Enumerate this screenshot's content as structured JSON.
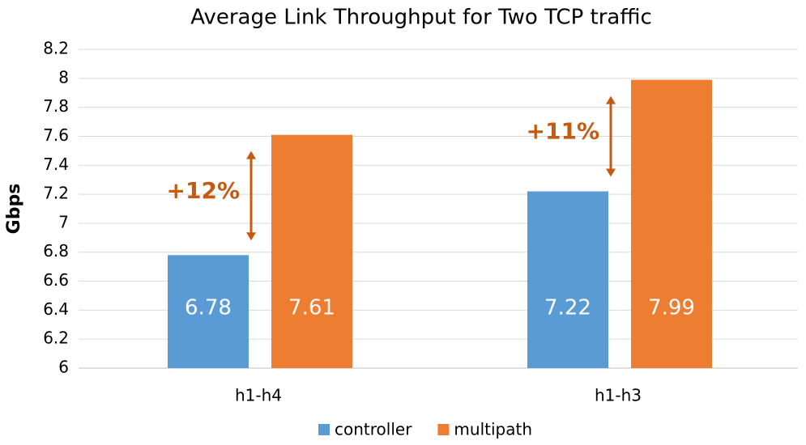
{
  "chart_data": {
    "type": "bar",
    "title": "Average Link Throughput for Two TCP traffic",
    "y_label": "Gbps",
    "categories": [
      "h1-h4",
      "h1-h3"
    ],
    "series": [
      {
        "name": "controller",
        "color": "#5b9bd5",
        "values": [
          6.78,
          7.22
        ]
      },
      {
        "name": "multipath",
        "color": "#ed7d31",
        "values": [
          7.61,
          7.99
        ]
      }
    ],
    "annotations": [
      "+12%",
      "+11%"
    ],
    "annotation_color": "#c55a11",
    "ylim": [
      6,
      8.2
    ],
    "yticks": [
      6,
      6.2,
      6.4,
      6.6,
      6.8,
      7,
      7.2,
      7.4,
      7.6,
      7.8,
      8,
      8.2
    ],
    "grid": true,
    "legend": "bottom"
  }
}
